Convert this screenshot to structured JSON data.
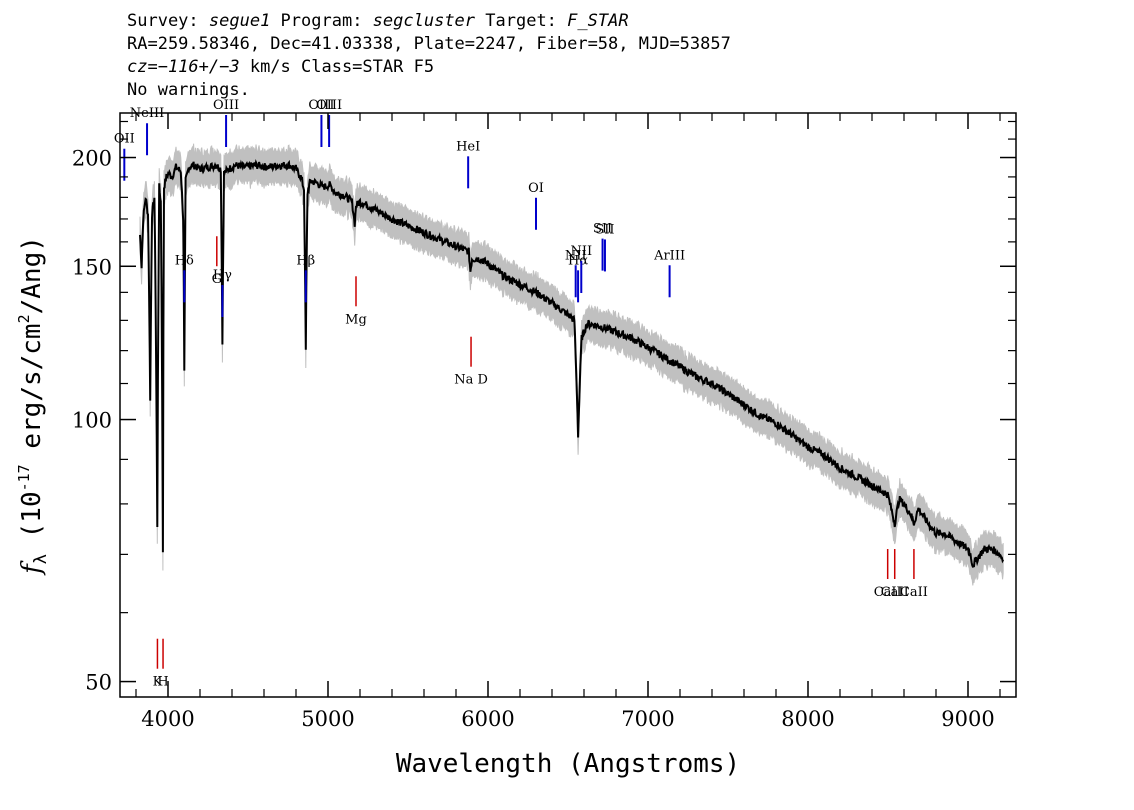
{
  "header": {
    "line1": {
      "survey_label": "Survey: ",
      "survey": "segue1",
      "program_label": " Program: ",
      "program": "segcluster",
      "target_label": " Target: ",
      "target": "F_STAR"
    },
    "line2": "RA=259.58346, Dec=41.03338, Plate=2247, Fiber=58, MJD=53857",
    "line3": {
      "cz": "cz=−116+/−3",
      "rest": " km/s Class=STAR F5"
    },
    "line4": "No warnings."
  },
  "chart_data": {
    "type": "line",
    "title": "",
    "xlabel": "Wavelength (Angstroms)",
    "ylabel": "f_λ (10^-17 erg/s/cm^2/Ang)",
    "xlim": [
      3700,
      9300
    ],
    "ylim": [
      48,
      225
    ],
    "y_scale": "log",
    "x_ticks": [
      4000,
      5000,
      6000,
      7000,
      8000,
      9000
    ],
    "y_ticks": [
      50,
      100,
      150,
      200
    ],
    "series": [
      {
        "color": "#000000",
        "x": [
          3825,
          3835,
          3845,
          3860,
          3875,
          3889,
          3900,
          3915,
          3933,
          3945,
          3955,
          3968,
          3975,
          3990,
          4005,
          4025,
          4050,
          4080,
          4095,
          4102,
          4110,
          4130,
          4160,
          4200,
          4250,
          4300,
          4330,
          4340,
          4350,
          4380,
          4420,
          4480,
          4550,
          4620,
          4700,
          4760,
          4800,
          4830,
          4850,
          4861,
          4872,
          4890,
          4930,
          4970,
          5010,
          5050,
          5100,
          5150,
          5167,
          5175,
          5200,
          5250,
          5300,
          5400,
          5500,
          5600,
          5700,
          5800,
          5880,
          5890,
          5900,
          5950,
          6000,
          6100,
          6200,
          6300,
          6400,
          6500,
          6540,
          6563,
          6585,
          6620,
          6700,
          6800,
          6900,
          7000,
          7100,
          7200,
          7300,
          7400,
          7500,
          7600,
          7700,
          7800,
          7900,
          8000,
          8100,
          8200,
          8300,
          8400,
          8498,
          8520,
          8542,
          8570,
          8600,
          8640,
          8662,
          8690,
          8750,
          8800,
          8850,
          8900,
          8950,
          9000,
          9015,
          9030,
          9100,
          9150,
          9200,
          9220
        ],
        "y": [
          163,
          150,
          170,
          180,
          172,
          105,
          172,
          180,
          75,
          185,
          178,
          70,
          185,
          190,
          192,
          190,
          195,
          193,
          170,
          113,
          188,
          195,
          196,
          194,
          195,
          196,
          194,
          122,
          192,
          194,
          196,
          195,
          196,
          195,
          196,
          196,
          194,
          190,
          184,
          120,
          182,
          188,
          187,
          185,
          186,
          182,
          181,
          178,
          168,
          176,
          178,
          176,
          174,
          170,
          167,
          164,
          161,
          158,
          156,
          148,
          153,
          153,
          151,
          146,
          143,
          140,
          136,
          132,
          130,
          96,
          124,
          129,
          128,
          126,
          124,
          121,
          118,
          115,
          112,
          110,
          107,
          104,
          101,
          99,
          96,
          93,
          91,
          88,
          86,
          84,
          82,
          79,
          76,
          81,
          80,
          78,
          76,
          79,
          76,
          74,
          74,
          73,
          72,
          71,
          70,
          68,
          71,
          71,
          70,
          69
        ]
      }
    ],
    "emission_lines": [
      {
        "label": "OII",
        "x": 3727
      },
      {
        "label": "NeIII",
        "x": 3869
      },
      {
        "label": "Hδ",
        "x": 4102
      },
      {
        "label": "Hγ",
        "x": 4340
      },
      {
        "label": "OIII",
        "x": 4363
      },
      {
        "label": "Hβ",
        "x": 4861
      },
      {
        "label": "OIII",
        "x": 4959
      },
      {
        "label": "OIII",
        "x": 5007
      },
      {
        "label": "HeI",
        "x": 5876
      },
      {
        "label": "OI",
        "x": 6300
      },
      {
        "label": "NII",
        "x": 6548
      },
      {
        "label": "Hα",
        "x": 6563
      },
      {
        "label": "NII",
        "x": 6583
      },
      {
        "label": "SII",
        "x": 6716
      },
      {
        "label": "SII",
        "x": 6731
      },
      {
        "label": "ArIII",
        "x": 7135
      }
    ],
    "absorption_lines": [
      {
        "label": "K",
        "x": 3934
      },
      {
        "label": "H",
        "x": 3969
      },
      {
        "label": "G",
        "x": 4305
      },
      {
        "label": "Mg",
        "x": 5175
      },
      {
        "label": "Na D",
        "x": 5894
      },
      {
        "label": "CaII",
        "x": 8498
      },
      {
        "label": "CaII",
        "x": 8542
      },
      {
        "label": "CaII",
        "x": 8662
      }
    ],
    "colors": {
      "flux": "#000000",
      "error": "#c0c0c0",
      "emission": "#0000cc",
      "absorption": "#cc0000"
    }
  }
}
